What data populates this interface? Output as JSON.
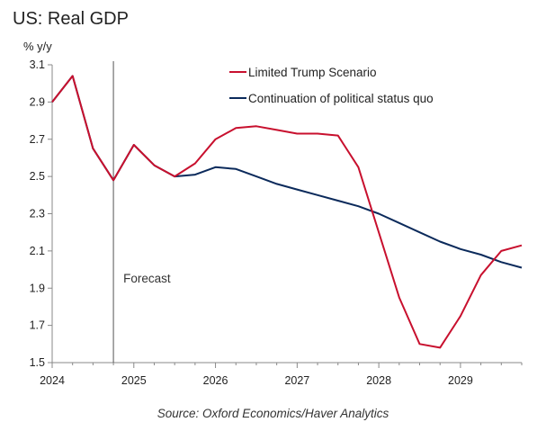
{
  "chart_data": {
    "type": "line",
    "title": "US: Real GDP",
    "ylabel": "% y/y",
    "xlabel": "",
    "source": "Source: Oxford Economics/Haver Analytics",
    "ylim": [
      1.5,
      3.1
    ],
    "yticks": [
      "1.5",
      "1.7",
      "1.9",
      "2.1",
      "2.3",
      "2.5",
      "2.7",
      "2.9",
      "3.1"
    ],
    "xlim": [
      2024.0,
      2029.75
    ],
    "xticks": [
      "2024",
      "2025",
      "2026",
      "2027",
      "2028",
      "2029"
    ],
    "grid": false,
    "legend_position": "top-right",
    "annotation": {
      "label": "Forecast",
      "x": 2024.75
    },
    "series": [
      {
        "name": "Limited Trump Scenario",
        "color": "#c8102e",
        "x": [
          2024.0,
          2024.25,
          2024.5,
          2024.75,
          2025.0,
          2025.25,
          2025.5,
          2025.75,
          2026.0,
          2026.25,
          2026.5,
          2026.75,
          2027.0,
          2027.25,
          2027.5,
          2027.75,
          2028.0,
          2028.25,
          2028.5,
          2028.75,
          2029.0,
          2029.25,
          2029.5,
          2029.75
        ],
        "values": [
          2.9,
          3.04,
          2.65,
          2.48,
          2.67,
          2.56,
          2.5,
          2.57,
          2.7,
          2.76,
          2.77,
          2.75,
          2.73,
          2.73,
          2.72,
          2.55,
          2.2,
          1.85,
          1.6,
          1.58,
          1.75,
          1.97,
          2.1,
          2.13
        ]
      },
      {
        "name": "Continuation of political status quo",
        "color": "#0b2a5b",
        "x": [
          2024.0,
          2024.25,
          2024.5,
          2024.75,
          2025.0,
          2025.25,
          2025.5,
          2025.75,
          2026.0,
          2026.25,
          2026.5,
          2026.75,
          2027.0,
          2027.25,
          2027.5,
          2027.75,
          2028.0,
          2028.25,
          2028.5,
          2028.75,
          2029.0,
          2029.25,
          2029.5,
          2029.75
        ],
        "values": [
          2.9,
          3.04,
          2.65,
          2.48,
          2.67,
          2.56,
          2.5,
          2.51,
          2.55,
          2.54,
          2.5,
          2.46,
          2.43,
          2.4,
          2.37,
          2.34,
          2.3,
          2.25,
          2.2,
          2.15,
          2.11,
          2.08,
          2.04,
          2.01
        ]
      }
    ]
  }
}
